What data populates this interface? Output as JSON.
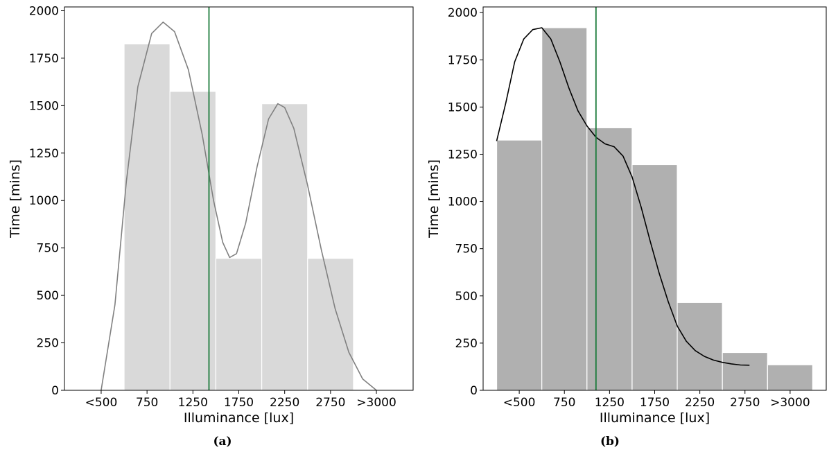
{
  "chart_data": [
    {
      "type": "bar",
      "caption": "(a)",
      "xlabel": "Illuminance [lux]",
      "ylabel": "Time [mins]",
      "ylim": [
        0,
        2020
      ],
      "xlim": [
        -0.8,
        6.8
      ],
      "x_tick_labels": [
        "<500",
        "750",
        "1250",
        "1750",
        "2250",
        "2750",
        ">3000"
      ],
      "y_ticks": [
        0,
        250,
        500,
        750,
        1000,
        1250,
        1500,
        1750,
        2000
      ],
      "y_tick_labels": [
        "0",
        "250",
        "500",
        "750",
        "1000",
        "1250",
        "1500",
        "1750",
        "2000"
      ],
      "bar_color": "#d9d9d9",
      "bars": [
        {
          "x_start": 0.5,
          "x_end": 1.5,
          "value": 1825
        },
        {
          "x_start": 1.5,
          "x_end": 2.5,
          "value": 1575
        },
        {
          "x_start": 2.5,
          "x_end": 3.5,
          "value": 695
        },
        {
          "x_start": 3.5,
          "x_end": 4.5,
          "value": 1510
        },
        {
          "x_start": 4.5,
          "x_end": 5.5,
          "value": 695
        }
      ],
      "curve_color": "#808080",
      "curve": [
        [
          0,
          0
        ],
        [
          0.3,
          450
        ],
        [
          0.55,
          1100
        ],
        [
          0.8,
          1600
        ],
        [
          1.1,
          1880
        ],
        [
          1.35,
          1940
        ],
        [
          1.6,
          1890
        ],
        [
          1.9,
          1690
        ],
        [
          2.2,
          1350
        ],
        [
          2.45,
          1000
        ],
        [
          2.65,
          780
        ],
        [
          2.8,
          700
        ],
        [
          2.95,
          720
        ],
        [
          3.15,
          880
        ],
        [
          3.4,
          1180
        ],
        [
          3.65,
          1430
        ],
        [
          3.85,
          1510
        ],
        [
          4.0,
          1490
        ],
        [
          4.2,
          1380
        ],
        [
          4.5,
          1080
        ],
        [
          4.8,
          740
        ],
        [
          5.1,
          430
        ],
        [
          5.4,
          200
        ],
        [
          5.7,
          60
        ],
        [
          6.0,
          0
        ]
      ],
      "vline_x": 2.35,
      "vline_color": "#1a7a3a"
    },
    {
      "type": "bar",
      "caption": "(b)",
      "xlabel": "Illuminance [lux]",
      "ylabel": "Time [mins]",
      "ylim": [
        0,
        2030
      ],
      "xlim": [
        -0.8,
        6.8
      ],
      "x_tick_labels": [
        "<500",
        "750",
        "1250",
        "1750",
        "2250",
        "2750",
        ">3000"
      ],
      "y_ticks": [
        0,
        250,
        500,
        750,
        1000,
        1250,
        1500,
        1750,
        2000
      ],
      "y_tick_labels": [
        "0",
        "250",
        "500",
        "750",
        "1000",
        "1250",
        "1500",
        "1750",
        "2000"
      ],
      "bar_color": "#b0b0b0",
      "bars": [
        {
          "x_start": -0.5,
          "x_end": 0.5,
          "value": 1325
        },
        {
          "x_start": 0.5,
          "x_end": 1.5,
          "value": 1920
        },
        {
          "x_start": 1.5,
          "x_end": 2.5,
          "value": 1390
        },
        {
          "x_start": 2.5,
          "x_end": 3.5,
          "value": 1195
        },
        {
          "x_start": 3.5,
          "x_end": 4.5,
          "value": 465
        },
        {
          "x_start": 4.5,
          "x_end": 5.5,
          "value": 200
        },
        {
          "x_start": 5.5,
          "x_end": 6.5,
          "value": 135
        }
      ],
      "curve_color": "#000000",
      "curve": [
        [
          -0.5,
          1320
        ],
        [
          -0.3,
          1520
        ],
        [
          -0.1,
          1740
        ],
        [
          0.1,
          1860
        ],
        [
          0.3,
          1910
        ],
        [
          0.5,
          1920
        ],
        [
          0.7,
          1860
        ],
        [
          0.9,
          1740
        ],
        [
          1.1,
          1600
        ],
        [
          1.3,
          1480
        ],
        [
          1.5,
          1400
        ],
        [
          1.7,
          1340
        ],
        [
          1.9,
          1305
        ],
        [
          2.1,
          1290
        ],
        [
          2.3,
          1240
        ],
        [
          2.5,
          1130
        ],
        [
          2.7,
          970
        ],
        [
          2.9,
          790
        ],
        [
          3.1,
          620
        ],
        [
          3.3,
          470
        ],
        [
          3.5,
          340
        ],
        [
          3.7,
          260
        ],
        [
          3.9,
          210
        ],
        [
          4.1,
          180
        ],
        [
          4.3,
          160
        ],
        [
          4.5,
          148
        ],
        [
          4.7,
          140
        ],
        [
          4.9,
          134
        ],
        [
          5.1,
          133
        ]
      ],
      "vline_x": 1.7,
      "vline_color": "#1a7a3a"
    }
  ]
}
